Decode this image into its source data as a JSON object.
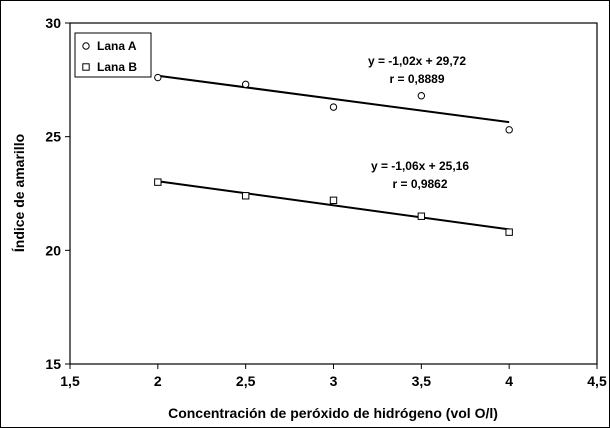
{
  "chart_data": {
    "type": "scatter",
    "title": "",
    "xlabel": "Concentración de peróxido de hidrógeno (vol O/l)",
    "ylabel": "Índice de amarillo",
    "xlim": [
      1.5,
      4.5
    ],
    "ylim": [
      15,
      30
    ],
    "x_ticks": [
      "1,5",
      "2",
      "2,5",
      "3",
      "3,5",
      "4",
      "4,5"
    ],
    "x_tick_values": [
      1.5,
      2,
      2.5,
      3,
      3.5,
      4,
      4.5
    ],
    "y_ticks": [
      "15",
      "20",
      "25",
      "30"
    ],
    "y_tick_values": [
      15,
      20,
      25,
      30
    ],
    "grid": false,
    "legend_position": "top-left",
    "series": [
      {
        "name": "Lana A",
        "marker": "circle",
        "x": [
          2,
          2.5,
          3,
          3.5,
          4
        ],
        "y": [
          27.6,
          27.3,
          26.3,
          26.8,
          25.3
        ],
        "trendline": {
          "slope": -1.02,
          "intercept": 29.72
        },
        "equation": "y = -1,02x + 29,72",
        "r_label": "r = 0,8889"
      },
      {
        "name": "Lana B",
        "marker": "square",
        "x": [
          2,
          2.5,
          3,
          3.5,
          4
        ],
        "y": [
          23.0,
          22.4,
          22.2,
          21.5,
          20.8
        ],
        "trendline": {
          "slope": -1.06,
          "intercept": 25.16
        },
        "equation": "y = -1,06x + 25,16",
        "r_label": "r = 0,9862"
      }
    ]
  }
}
